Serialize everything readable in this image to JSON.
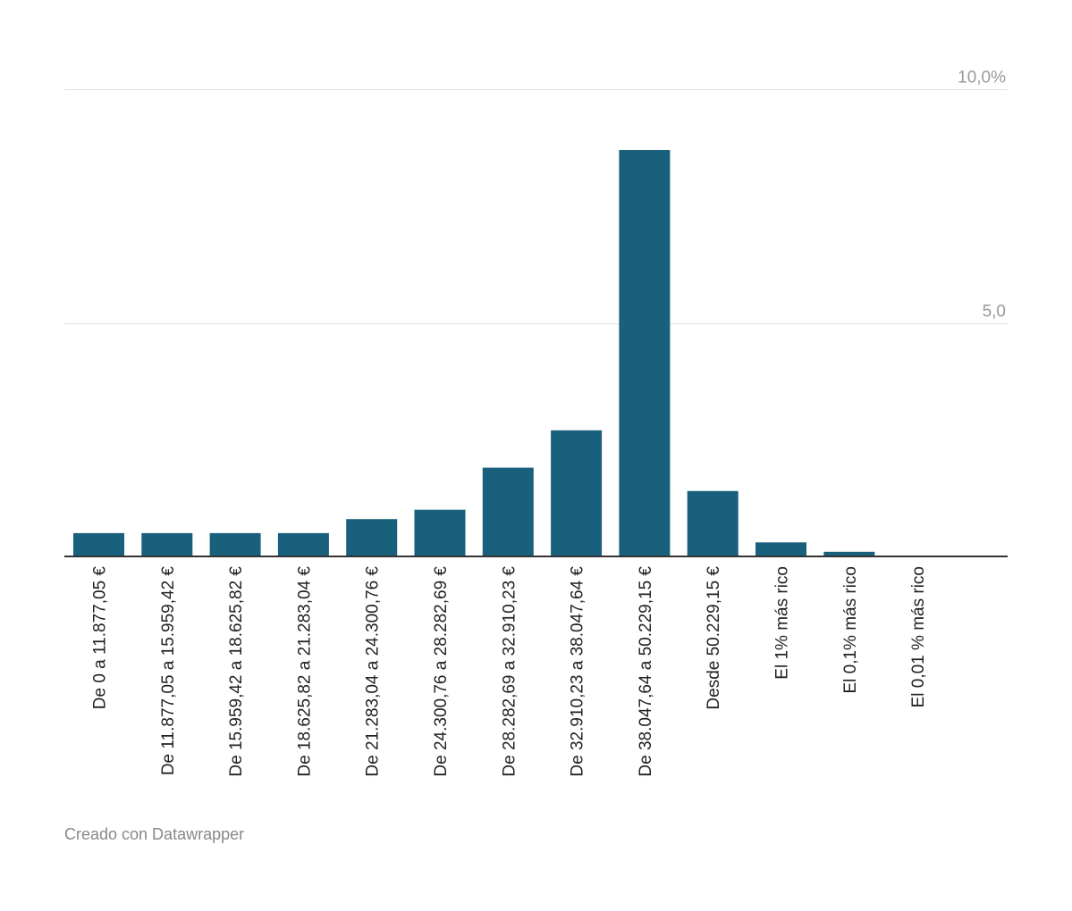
{
  "chart_data": {
    "type": "bar",
    "title": "",
    "xlabel": "",
    "ylabel": "",
    "ylim": [
      0,
      10
    ],
    "yticks": [
      {
        "value": 10,
        "label": "10,0%"
      },
      {
        "value": 5,
        "label": "5,0"
      }
    ],
    "grid": true,
    "bar_color": "#18607b",
    "categories": [
      "De 0 a 11.877,05 €",
      "De 11.877,05 a 15.959,42 €",
      "De 15.959,42 a 18.625,82 €",
      "De 18.625,82 a 21.283,04 €",
      "De 21.283,04 a 24.300,76 €",
      "De 24.300,76 a 28.282,69 €",
      "De 28.282,69 a 32.910,23 €",
      "De 32.910,23 a 38.047,64 €",
      "De 38.047,64 a 50.229,15 €",
      "Desde 50.229,15 €",
      "El 1% más rico",
      "El 0,1% más rico",
      "El 0,01 % más rico"
    ],
    "values": [
      0.5,
      0.5,
      0.5,
      0.5,
      0.8,
      1.0,
      1.9,
      2.7,
      8.7,
      1.4,
      0.3,
      0.1,
      0.0
    ]
  },
  "credit": "Creado con Datawrapper"
}
